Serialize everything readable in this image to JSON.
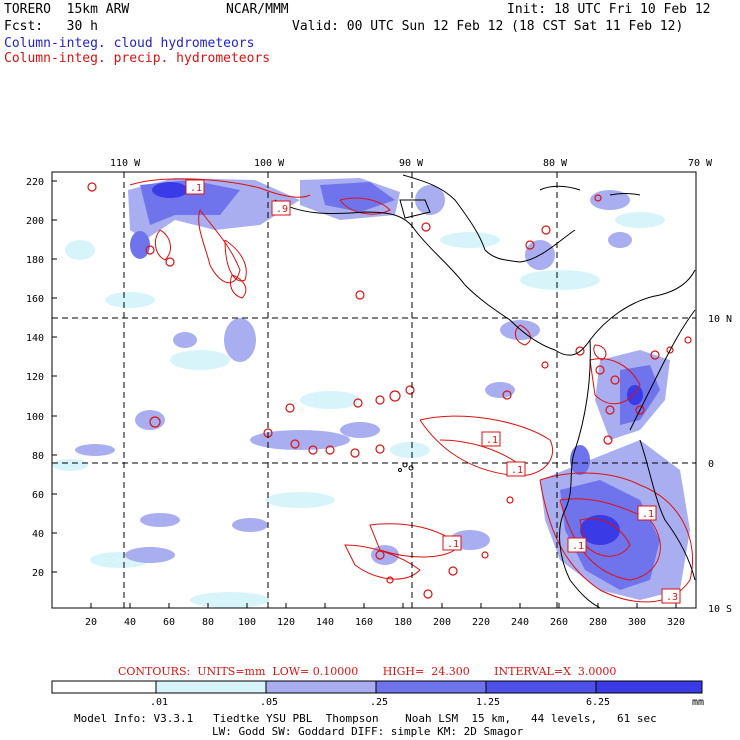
{
  "header": {
    "model": "TORERO  15km ARW",
    "center": "NCAR/MMM",
    "init": "Init: 18 UTC Fri 10 Feb 12",
    "fcst": "Fcst:   30 h",
    "valid": "Valid: 00 UTC Sun 12 Feb 12 (18 CST Sat 11 Feb 12)",
    "field1": "Column-integ. cloud hydrometeors",
    "field2": "Column-integ. precip. hydrometeors"
  },
  "colors": {
    "cloud_field": "#2222cc",
    "precip_contour": "#dd1111",
    "shade_light": "#d8f4fb",
    "shade_mid": "#a8aef0",
    "shade_dark": "#6f74ec",
    "shade_darker": "#3a3ae6"
  },
  "map": {
    "x_ticks": [
      "20",
      "40",
      "60",
      "80",
      "100",
      "120",
      "140",
      "160",
      "180",
      "200",
      "220",
      "240",
      "260",
      "280",
      "300",
      "320"
    ],
    "y_ticks": [
      "220",
      "200",
      "180",
      "160",
      "140",
      "120",
      "100",
      "80",
      "60",
      "40",
      "20"
    ],
    "lon_labels": [
      "110 W",
      "100 W",
      "90 W",
      "80 W",
      "70 W"
    ],
    "lat_labels": [
      "10 N",
      "0",
      "10 S"
    ],
    "contour_labels": [
      ".1",
      ".9",
      ".1",
      ".1",
      ".1",
      ".1",
      ".1",
      ".3"
    ]
  },
  "contours_text": "CONTOURS:  UNITS=mm  LOW= 0.10000       HIGH=  24.300       INTERVAL=X  3.0000",
  "colorbar": {
    "labels": [
      ".01",
      ".05",
      ".25",
      "1.25",
      "6.25"
    ],
    "units": "mm"
  },
  "model_info": {
    "line1": "Model Info: V3.3.1   Tiedtke YSU PBL  Thompson    Noah LSM  15 km,   44 levels,   61 sec",
    "line2": "LW: Godd SW: Goddard DIFF: simple KM: 2D Smagor"
  }
}
